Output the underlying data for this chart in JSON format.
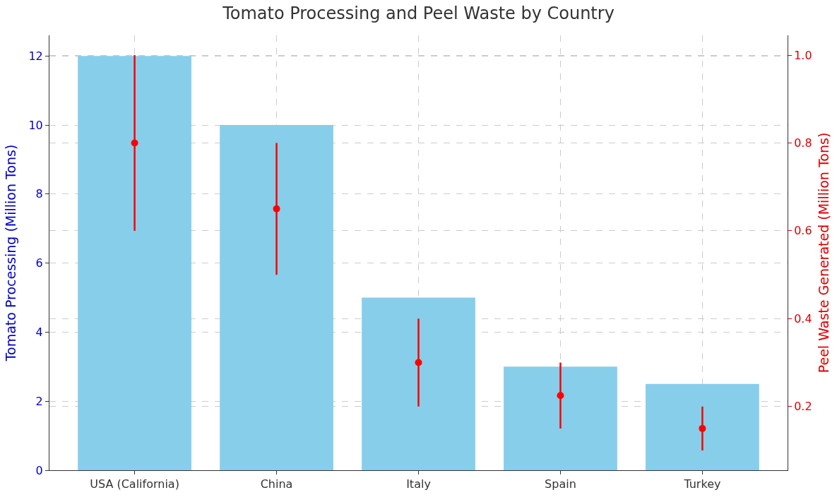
{
  "chart_data": {
    "type": "bar",
    "title": "Tomato Processing and Peel Waste by Country",
    "ylabel": "Tomato Processing (Million Tons)",
    "y2label": "Peel Waste Generated (Million Tons)",
    "categories": [
      "USA (California)",
      "China",
      "Italy",
      "Spain",
      "Turkey"
    ],
    "series": [
      {
        "color": "#87ceeb",
        "values": [
          12,
          10,
          5,
          3,
          2.5
        ]
      },
      {
        "type": "scatter",
        "axis": "y2",
        "color": "#ff0000",
        "marker": "circle",
        "values": [
          0.8,
          0.65,
          0.3,
          0.225,
          0.15
        ],
        "errors": [
          0.2,
          0.15,
          0.1,
          0.075,
          0.05
        ]
      }
    ],
    "ylim": [
      0,
      12.6
    ],
    "yticks": [
      0,
      2,
      4,
      6,
      8,
      10,
      12
    ],
    "y2lim": [
      0.055,
      1.045
    ],
    "y2ticks": [
      0.2,
      0.4,
      0.6,
      0.8,
      {
        "value": 1,
        "label": "1.0"
      }
    ],
    "grid": true
  }
}
